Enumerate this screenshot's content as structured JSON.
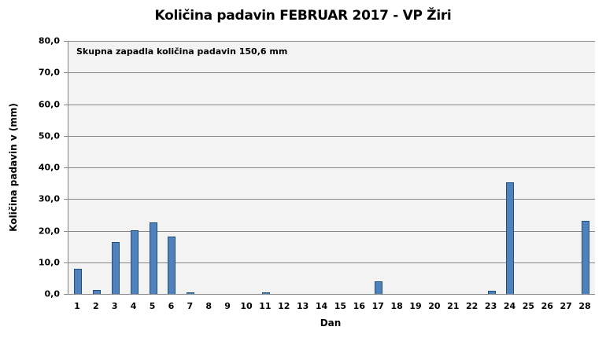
{
  "chart_data": {
    "type": "bar",
    "title": "Količina padavin FEBRUAR 2017 - VP Žiri",
    "annotation": "Skupna zapadla količina padavin 150,6 mm",
    "xlabel": "Dan",
    "ylabel": "Količina padavin v  (mm)",
    "ylim": [
      0,
      80
    ],
    "yticks": [
      "0,0",
      "10,0",
      "20,0",
      "30,0",
      "40,0",
      "50,0",
      "60,0",
      "70,0",
      "80,0"
    ],
    "grid": true,
    "legend": null,
    "bar_color": "#4f81bd",
    "categories": [
      "1",
      "2",
      "3",
      "4",
      "5",
      "6",
      "7",
      "8",
      "9",
      "10",
      "11",
      "12",
      "13",
      "14",
      "15",
      "16",
      "17",
      "18",
      "19",
      "20",
      "21",
      "22",
      "23",
      "24",
      "25",
      "26",
      "27",
      "28"
    ],
    "values": [
      8.0,
      1.2,
      16.3,
      20.2,
      22.5,
      18.2,
      0.3,
      0,
      0,
      0,
      0.5,
      0,
      0,
      0,
      0,
      0,
      4.1,
      0,
      0,
      0,
      0,
      0,
      0.9,
      35.4,
      0,
      0,
      0,
      23.0
    ]
  }
}
